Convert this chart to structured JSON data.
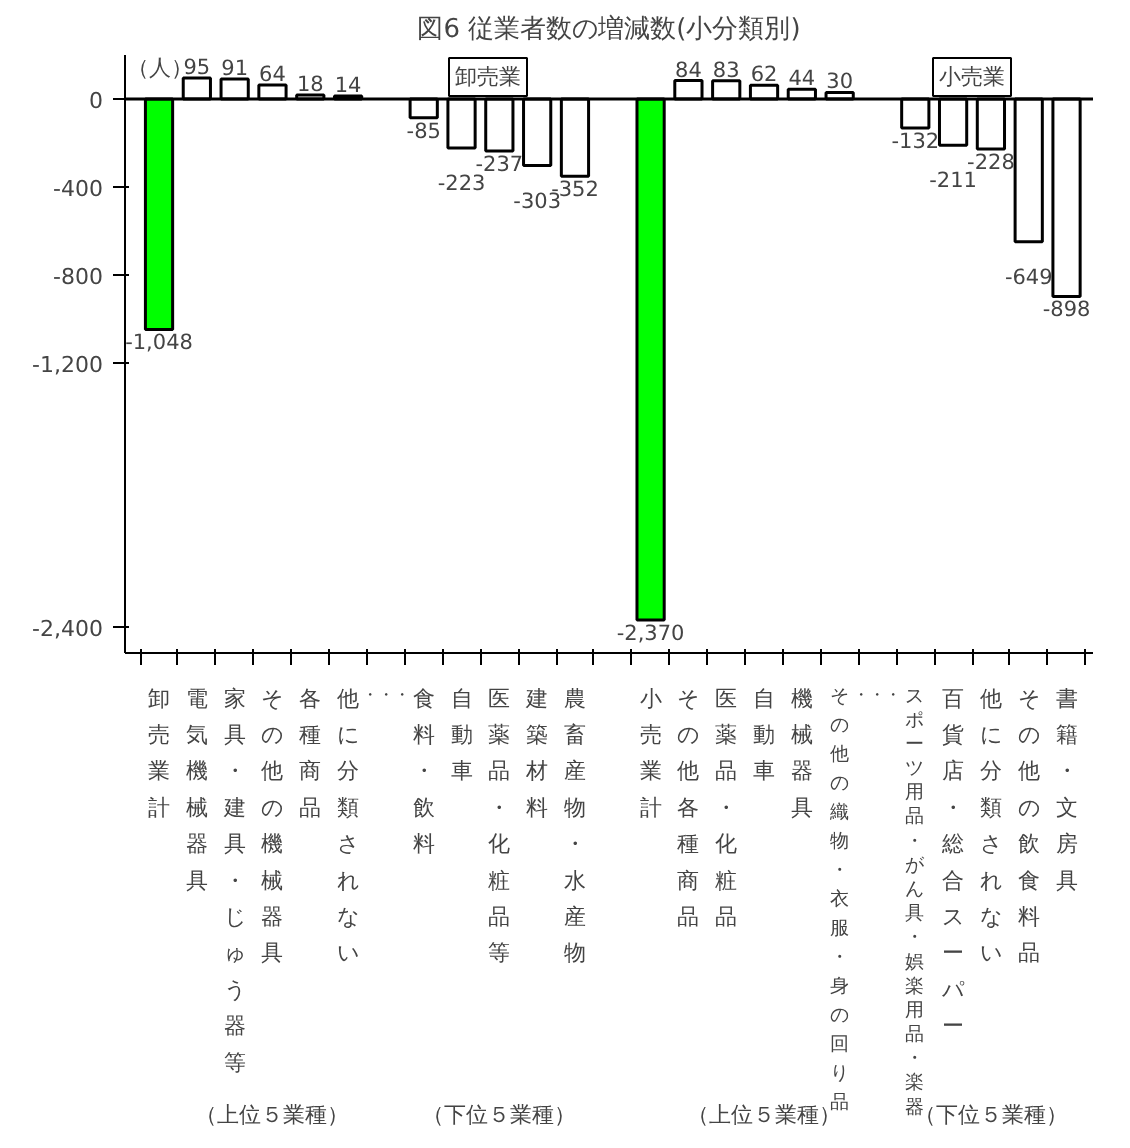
{
  "chart_data": {
    "type": "bar",
    "title": "図6 従業者数の増減数(小分類別)",
    "ylabel": "（人）",
    "categories": [
      "卸売業計",
      "電気機械器具",
      "家具・建具・じゅう器等",
      "その他の機械器具",
      "各種商品",
      "他に分類されない",
      "・・・",
      "食料・飲料",
      "自動車",
      "医薬品・化粧品等",
      "建築材料",
      "農畜産物・水産物",
      null,
      "小売業計",
      "その他各種商品",
      "医薬品・化粧品",
      "自動車",
      "機械器具",
      "その他の織物・衣服・身の回り品",
      "・・・",
      "スポーツ用品・がん具・娯楽用品・楽器",
      "百貨店・総合スーパー",
      "他に分類されない",
      "その他の飲食料品",
      "書籍・文房具"
    ],
    "values": [
      -1048,
      95,
      91,
      64,
      18,
      14,
      null,
      -85,
      -223,
      -237,
      -303,
      -352,
      null,
      -2370,
      84,
      83,
      62,
      44,
      30,
      null,
      -132,
      -211,
      -228,
      -649,
      -898
    ],
    "value_labels": [
      "-1,048",
      "95",
      "91",
      "64",
      "18",
      "14",
      null,
      "-85",
      "-223",
      "-237",
      "-303",
      "-352",
      null,
      "-2,370",
      "84",
      "83",
      "62",
      "44",
      "30",
      null,
      "-132",
      "-211",
      "-228",
      "-649",
      "-898"
    ],
    "colors": [
      "#00ff00",
      "#ffffff",
      "#ffffff",
      "#ffffff",
      "#ffffff",
      "#ffffff",
      "#ffffff",
      "#ffffff",
      "#ffffff",
      "#ffffff",
      "#ffffff",
      "#ffffff",
      "#ffffff",
      "#00ff00",
      "#ffffff",
      "#ffffff",
      "#ffffff",
      "#ffffff",
      "#ffffff",
      "#ffffff",
      "#ffffff",
      "#ffffff",
      "#ffffff",
      "#ffffff",
      "#ffffff"
    ],
    "ylim": [
      -2520,
      200
    ],
    "yticks": [
      0,
      -400,
      -800,
      {
        "value": -1200,
        "label": "-1,200"
      },
      {
        "value": -2400,
        "label": "-2,400"
      }
    ],
    "grid": false,
    "ref_lines": [
      {
        "axis": "y",
        "value": 0
      }
    ],
    "annotations": [
      "卸売業",
      "小売業",
      "（上位５業種）",
      "（下位５業種）",
      "（上位５業種）",
      "（下位５業種）"
    ]
  }
}
